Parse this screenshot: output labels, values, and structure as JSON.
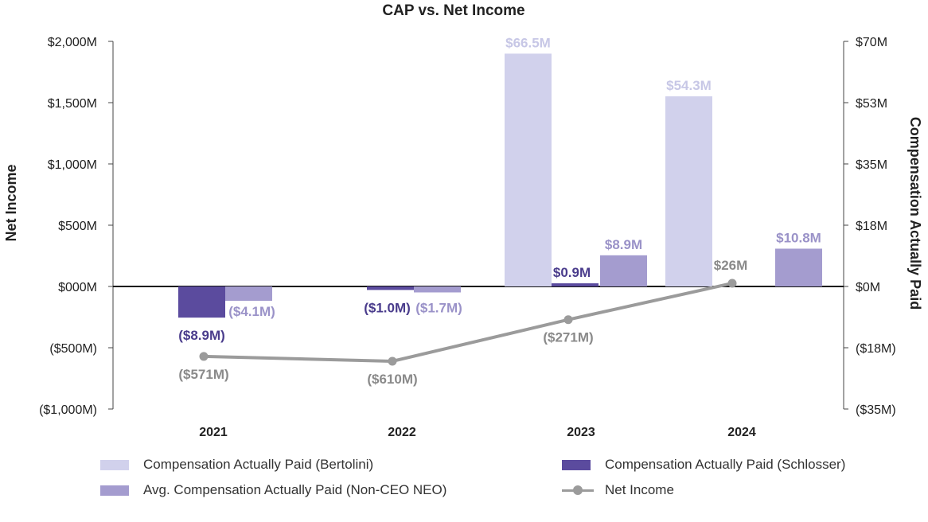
{
  "chart_data": {
    "type": "bar",
    "title": "CAP vs. Net Income",
    "categories": [
      "2021",
      "2022",
      "2023",
      "2024"
    ],
    "left_axis": {
      "label": "Net Income",
      "ticks": [
        "$2,000M",
        "$1,500M",
        "$1,000M",
        "$500M",
        "$000M",
        "($500M)",
        "($1,000M)"
      ],
      "tick_values": [
        2000,
        1500,
        1000,
        500,
        0,
        -500,
        -1000
      ],
      "ylim": [
        -1000,
        2000
      ]
    },
    "right_axis": {
      "label": "Compensation Actually Paid",
      "ticks": [
        "$70M",
        "$53M",
        "$35M",
        "$18M",
        "$0M",
        "($18M)",
        "($35M)"
      ],
      "tick_values": [
        70,
        52.5,
        35,
        17.5,
        0,
        -17.5,
        -35
      ],
      "ylim": [
        -35,
        70
      ]
    },
    "series": [
      {
        "name": "Compensation Actually Paid (Bertolini)",
        "axis": "right",
        "color": "#d1d1ec",
        "values": [
          null,
          null,
          66.5,
          54.3
        ],
        "labels": [
          "",
          "",
          "$66.5M",
          "$54.3M"
        ],
        "label_color": "#c7c7e6"
      },
      {
        "name": "Compensation Actually Paid (Schlosser)",
        "axis": "right",
        "color": "#5b4b9e",
        "values": [
          -8.9,
          -1.0,
          0.9,
          null
        ],
        "labels": [
          "($8.9M)",
          "($1.0M)",
          "$0.9M",
          ""
        ],
        "label_color": "#4a3c8c"
      },
      {
        "name": "Avg. Compensation Actually Paid (Non-CEO NEO)",
        "axis": "right",
        "color": "#a49ccf",
        "values": [
          -4.1,
          -1.7,
          8.9,
          10.8
        ],
        "labels": [
          "($4.1M)",
          "($1.7M)",
          "$8.9M",
          "$10.8M"
        ],
        "label_color": "#9a92c8"
      },
      {
        "name": "Net Income",
        "axis": "left",
        "type": "line",
        "color": "#9b9b9b",
        "values": [
          -571,
          -610,
          -271,
          26
        ],
        "labels": [
          "($571M)",
          "($610M)",
          "($271M)",
          "$26M"
        ],
        "label_color": "#8a8a8a"
      }
    ]
  },
  "legend": {
    "bertolini": "Compensation Actually Paid (Bertolini)",
    "schlosser": "Compensation Actually Paid (Schlosser)",
    "nonceo": "Avg. Compensation Actually Paid (Non-CEO NEO)",
    "netincome": "Net Income"
  },
  "colors": {
    "bertolini": "#d1d1ec",
    "schlosser": "#5b4b9e",
    "nonceo": "#a49ccf",
    "netincome": "#9b9b9b",
    "axis": "#333333"
  }
}
